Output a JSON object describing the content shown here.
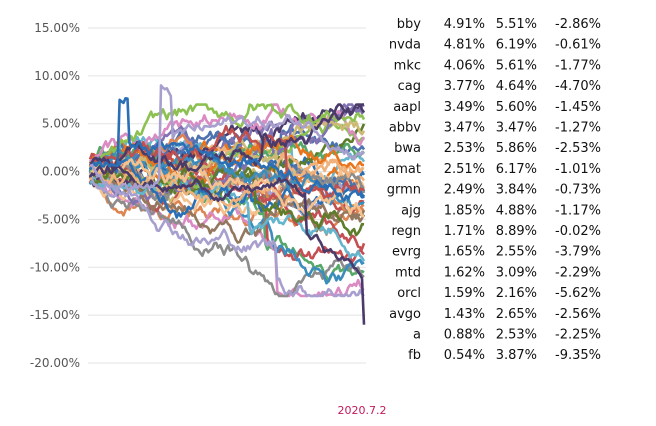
{
  "chart_data": {
    "type": "line",
    "ylim": [
      -0.2,
      0.15
    ],
    "y_ticks": [
      0.15,
      0.1,
      0.05,
      0.0,
      -0.05,
      -0.1,
      -0.15,
      -0.2
    ],
    "y_tick_labels": [
      "15.00%",
      "10.00%",
      "5.00%",
      "0.00%",
      "-5.00%",
      "-10.00%",
      "-15.00%",
      "-20.00%"
    ],
    "grid": true,
    "n_points": 140,
    "series_count": 40,
    "palette": [
      "#4c72b0",
      "#dd8452",
      "#55a868",
      "#c44e52",
      "#8172b2",
      "#937860",
      "#da8bc3",
      "#8c8c8c",
      "#ccb974",
      "#64b5cd",
      "#2a6fb5",
      "#e8741d",
      "#5e7d2a",
      "#a7a0cf",
      "#f0b27a",
      "#3b8dbd",
      "#c0504d",
      "#8cc152",
      "#f5c28f",
      "#4a3b6b"
    ],
    "highlight": {
      "dark_purple_end": -0.16,
      "blue_peak": 0.075,
      "lavender_peak": 0.09
    },
    "footer": "2020.7.2",
    "table": [
      {
        "ticker": "bby",
        "c1": "4.91%",
        "c2": "5.51%",
        "c3": "-2.86%"
      },
      {
        "ticker": "nvda",
        "c1": "4.81%",
        "c2": "6.19%",
        "c3": "-0.61%"
      },
      {
        "ticker": "mkc",
        "c1": "4.06%",
        "c2": "5.61%",
        "c3": "-1.77%"
      },
      {
        "ticker": "cag",
        "c1": "3.77%",
        "c2": "4.64%",
        "c3": "-4.70%"
      },
      {
        "ticker": "aapl",
        "c1": "3.49%",
        "c2": "5.60%",
        "c3": "-1.45%"
      },
      {
        "ticker": "abbv",
        "c1": "3.47%",
        "c2": "3.47%",
        "c3": "-1.27%"
      },
      {
        "ticker": "bwa",
        "c1": "2.53%",
        "c2": "5.86%",
        "c3": "-2.53%"
      },
      {
        "ticker": "amat",
        "c1": "2.51%",
        "c2": "6.17%",
        "c3": "-1.01%"
      },
      {
        "ticker": "grmn",
        "c1": "2.49%",
        "c2": "3.84%",
        "c3": "-0.73%"
      },
      {
        "ticker": "ajg",
        "c1": "1.85%",
        "c2": "4.88%",
        "c3": "-1.17%"
      },
      {
        "ticker": "regn",
        "c1": "1.71%",
        "c2": "8.89%",
        "c3": "-0.02%"
      },
      {
        "ticker": "evrg",
        "c1": "1.65%",
        "c2": "2.55%",
        "c3": "-3.79%"
      },
      {
        "ticker": "mtd",
        "c1": "1.62%",
        "c2": "3.09%",
        "c3": "-2.29%"
      },
      {
        "ticker": "orcl",
        "c1": "1.59%",
        "c2": "2.16%",
        "c3": "-5.62%"
      },
      {
        "ticker": "avgo",
        "c1": "1.43%",
        "c2": "2.65%",
        "c3": "-2.56%"
      },
      {
        "ticker": "a",
        "c1": "0.88%",
        "c2": "2.53%",
        "c3": "-2.25%"
      },
      {
        "ticker": "fb",
        "c1": "0.54%",
        "c2": "3.87%",
        "c3": "-9.35%"
      }
    ]
  }
}
